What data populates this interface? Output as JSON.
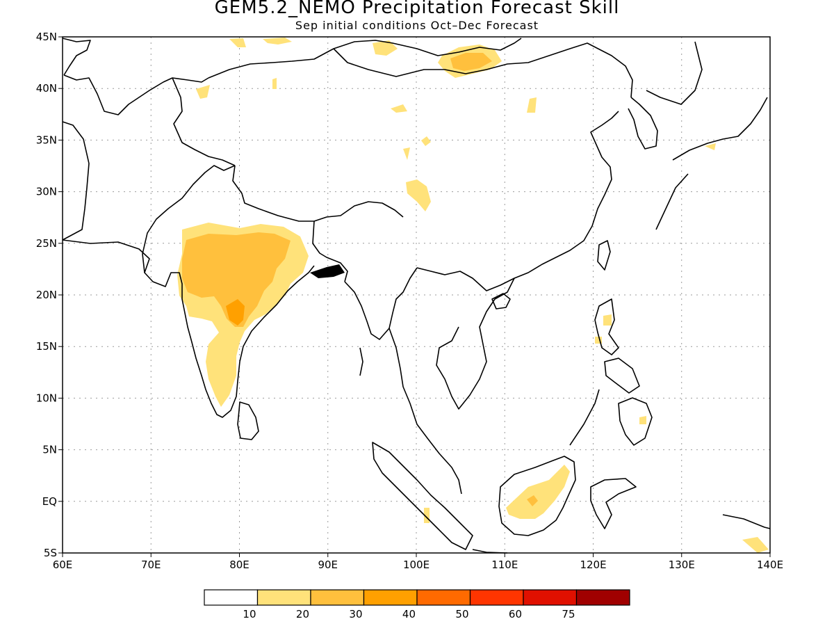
{
  "title": "GEM5.2_NEMO Precipitation Forecast Skill",
  "subtitle": "Sep initial conditions  Oct–Dec Forecast",
  "map": {
    "lon_range": [
      60,
      140
    ],
    "lat_range": [
      -5,
      45
    ],
    "lon_ticks": [
      "60E",
      "70E",
      "80E",
      "90E",
      "100E",
      "110E",
      "120E",
      "130E",
      "140E"
    ],
    "lat_ticks": [
      "5S",
      "EQ",
      "5N",
      "10N",
      "15N",
      "20N",
      "25N",
      "30N",
      "35N",
      "40N",
      "45N"
    ],
    "grid": "dotted"
  },
  "colorbar": {
    "levels": [
      "10",
      "20",
      "30",
      "40",
      "50",
      "60",
      "75"
    ],
    "colors": [
      "#ffffff",
      "#ffe27a",
      "#ffc03d",
      "#ffa000",
      "#ff6a00",
      "#ff3500",
      "#e01000",
      "#a00000"
    ]
  }
}
